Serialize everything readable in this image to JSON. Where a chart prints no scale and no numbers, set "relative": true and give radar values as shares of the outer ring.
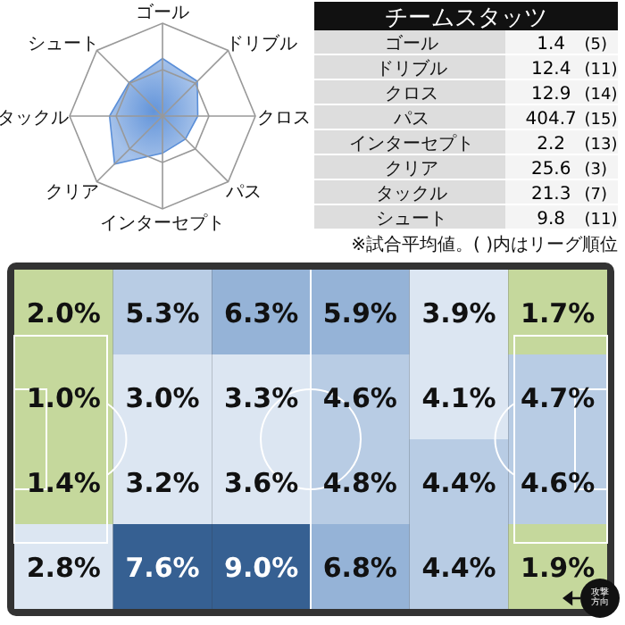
{
  "chart_data": [
    {
      "type": "radar",
      "relative": true,
      "grid": true,
      "categories": [
        "ゴール",
        "ドリブル",
        "クロス",
        "パス",
        "インターセプト",
        "クリア",
        "タックル",
        "シュート"
      ],
      "series": [
        {
          "color": "#5b8fd8",
          "values": [
            0.62,
            0.53,
            0.38,
            0.35,
            0.4,
            0.73,
            0.57,
            0.51
          ]
        }
      ]
    },
    {
      "type": "other",
      "title": "チームスタッツ",
      "data_labels": true,
      "categories": [
        "ゴール",
        "ドリブル",
        "クロス",
        "パス",
        "インターセプト",
        "クリア",
        "タックル",
        "シュート"
      ],
      "series": [
        {
          "values": [
            1.4,
            12.4,
            12.9,
            404.7,
            2.2,
            25.6,
            21.3,
            9.8
          ]
        },
        {
          "values": [
            null,
            null,
            null,
            null,
            null,
            null,
            null,
            null
          ],
          "value_labels": [
            "(5)",
            "(11)",
            "(14)",
            "(15)",
            "(13)",
            "(3)",
            "(7)",
            "(11)"
          ]
        }
      ],
      "annotations": [
        "※試合平均値。( )内はリーグ順位"
      ]
    },
    {
      "type": "heatmap",
      "categories": [
        null,
        null,
        null,
        null,
        null,
        null
      ],
      "y_categories": [
        null,
        null,
        null,
        null
      ],
      "cells": [
        [
          2.0,
          5.3,
          6.3,
          5.9,
          3.9,
          1.7
        ],
        [
          1.0,
          3.0,
          3.3,
          4.6,
          4.1,
          4.7
        ],
        [
          1.4,
          3.2,
          3.6,
          4.8,
          4.4,
          4.6
        ],
        [
          2.8,
          7.6,
          9.0,
          6.8,
          4.4,
          1.9
        ]
      ],
      "cell_labels": [
        [
          "2.0%",
          "5.3%",
          "6.3%",
          "5.9%",
          "3.9%",
          "1.7%"
        ],
        [
          "1.0%",
          "3.0%",
          "3.3%",
          "4.6%",
          "4.1%",
          "4.7%"
        ],
        [
          "1.4%",
          "3.2%",
          "3.6%",
          "4.8%",
          "4.4%",
          "4.6%"
        ],
        [
          "2.8%",
          "7.6%",
          "9.0%",
          "6.8%",
          "4.4%",
          "1.9%"
        ]
      ],
      "annotations": [
        "攻撃方向"
      ]
    }
  ]
}
